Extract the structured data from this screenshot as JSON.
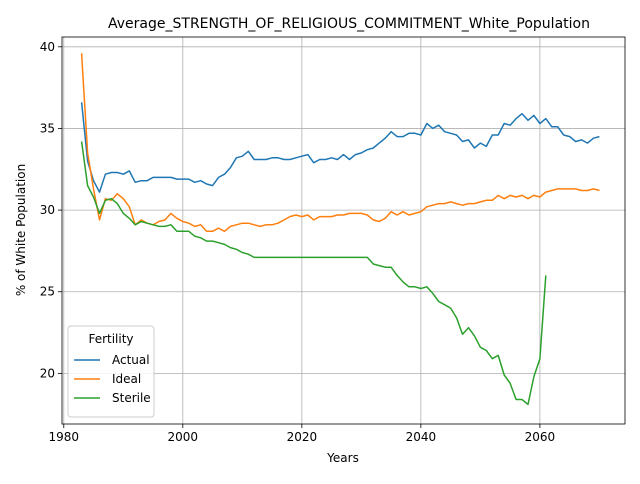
{
  "chart_data": {
    "type": "line",
    "title": "Average_STRENGTH_OF_RELIGIOUS_COMMITMENT_White_Population",
    "xlabel": "Years",
    "ylabel": "% of White Population",
    "xlim": [
      1979.7,
      2074.3
    ],
    "ylim": [
      16.9,
      40.6
    ],
    "xticks": [
      1980,
      2000,
      2020,
      2040,
      2060
    ],
    "yticks": [
      20,
      25,
      30,
      35,
      40
    ],
    "grid": true,
    "legend": {
      "title": "Fertility",
      "placement": "lower-left"
    },
    "series": [
      {
        "name": "Actual",
        "color": "#1f77b4",
        "x": [
          1983,
          1984,
          1985,
          1986,
          1987,
          1988,
          1989,
          1990,
          1991,
          1992,
          1993,
          1994,
          1995,
          1996,
          1997,
          1998,
          1999,
          2000,
          2001,
          2002,
          2003,
          2004,
          2005,
          2006,
          2007,
          2008,
          2009,
          2010,
          2011,
          2012,
          2013,
          2014,
          2015,
          2016,
          2017,
          2018,
          2019,
          2020,
          2021,
          2022,
          2023,
          2024,
          2025,
          2026,
          2027,
          2028,
          2029,
          2030,
          2031,
          2032,
          2033,
          2034,
          2035,
          2036,
          2037,
          2038,
          2039,
          2040,
          2041,
          2042,
          2043,
          2044,
          2045,
          2046,
          2047,
          2048,
          2049,
          2050,
          2051,
          2052,
          2053,
          2054,
          2055,
          2056,
          2057,
          2058,
          2059,
          2060,
          2061,
          2062,
          2063,
          2064,
          2065,
          2066,
          2067,
          2068,
          2069,
          2070
        ],
        "y": [
          36.6,
          33.0,
          31.8,
          31.1,
          32.2,
          32.3,
          32.3,
          32.2,
          32.4,
          31.7,
          31.8,
          31.8,
          32.0,
          32.0,
          32.0,
          32.0,
          31.9,
          31.9,
          31.9,
          31.7,
          31.8,
          31.6,
          31.5,
          32.0,
          32.2,
          32.6,
          33.2,
          33.3,
          33.6,
          33.1,
          33.1,
          33.1,
          33.2,
          33.2,
          33.1,
          33.1,
          33.2,
          33.3,
          33.4,
          32.9,
          33.1,
          33.1,
          33.2,
          33.1,
          33.4,
          33.1,
          33.4,
          33.5,
          33.7,
          33.8,
          34.1,
          34.4,
          34.8,
          34.5,
          34.5,
          34.7,
          34.7,
          34.6,
          35.3,
          35.0,
          35.2,
          34.8,
          34.7,
          34.6,
          34.2,
          34.3,
          33.8,
          34.1,
          33.9,
          34.6,
          34.6,
          35.3,
          35.2,
          35.6,
          35.9,
          35.5,
          35.8,
          35.3,
          35.6,
          35.1,
          35.1,
          34.6,
          34.5,
          34.2,
          34.3,
          34.1,
          34.4,
          34.5
        ]
      },
      {
        "name": "Ideal",
        "color": "#ff7f0e",
        "x": [
          1983,
          1984,
          1985,
          1986,
          1987,
          1988,
          1989,
          1990,
          1991,
          1992,
          1993,
          1994,
          1995,
          1996,
          1997,
          1998,
          1999,
          2000,
          2001,
          2002,
          2003,
          2004,
          2005,
          2006,
          2007,
          2008,
          2009,
          2010,
          2011,
          2012,
          2013,
          2014,
          2015,
          2016,
          2017,
          2018,
          2019,
          2020,
          2021,
          2022,
          2023,
          2024,
          2025,
          2026,
          2027,
          2028,
          2029,
          2030,
          2031,
          2032,
          2033,
          2034,
          2035,
          2036,
          2037,
          2038,
          2039,
          2040,
          2041,
          2042,
          2043,
          2044,
          2045,
          2046,
          2047,
          2048,
          2049,
          2050,
          2051,
          2052,
          2053,
          2054,
          2055,
          2056,
          2057,
          2058,
          2059,
          2060,
          2061,
          2062,
          2063,
          2064,
          2065,
          2066,
          2067,
          2068,
          2069,
          2070
        ],
        "y": [
          39.6,
          33.5,
          31.3,
          29.4,
          30.7,
          30.6,
          31.0,
          30.7,
          30.2,
          29.1,
          29.4,
          29.2,
          29.1,
          29.3,
          29.4,
          29.8,
          29.5,
          29.3,
          29.2,
          29.0,
          29.1,
          28.7,
          28.7,
          28.9,
          28.7,
          29.0,
          29.1,
          29.2,
          29.2,
          29.1,
          29.0,
          29.1,
          29.1,
          29.2,
          29.4,
          29.6,
          29.7,
          29.6,
          29.7,
          29.4,
          29.6,
          29.6,
          29.6,
          29.7,
          29.7,
          29.8,
          29.8,
          29.8,
          29.7,
          29.4,
          29.3,
          29.5,
          29.9,
          29.7,
          29.9,
          29.7,
          29.8,
          29.9,
          30.2,
          30.3,
          30.4,
          30.4,
          30.5,
          30.4,
          30.3,
          30.4,
          30.4,
          30.5,
          30.6,
          30.6,
          30.9,
          30.7,
          30.9,
          30.8,
          30.9,
          30.7,
          30.9,
          30.8,
          31.1,
          31.2,
          31.3,
          31.3,
          31.3,
          31.3,
          31.2,
          31.2,
          31.3,
          31.2
        ]
      },
      {
        "name": "Sterile",
        "color": "#2ca02c",
        "x": [
          1983,
          1984,
          1985,
          1986,
          1987,
          1988,
          1989,
          1990,
          1991,
          1992,
          1993,
          1994,
          1995,
          1996,
          1997,
          1998,
          1999,
          2000,
          2001,
          2002,
          2003,
          2004,
          2005,
          2006,
          2007,
          2008,
          2009,
          2010,
          2011,
          2012,
          2013,
          2014,
          2015,
          2016,
          2017,
          2018,
          2019,
          2020,
          2021,
          2022,
          2023,
          2024,
          2025,
          2026,
          2027,
          2028,
          2029,
          2030,
          2031,
          2032,
          2033,
          2034,
          2035,
          2036,
          2037,
          2038,
          2039,
          2040,
          2041,
          2042,
          2043,
          2044,
          2045,
          2046,
          2047,
          2048,
          2049,
          2050,
          2051,
          2052,
          2053,
          2054,
          2055,
          2056,
          2057,
          2058,
          2059,
          2060,
          2061
        ],
        "y": [
          34.2,
          31.5,
          30.8,
          29.8,
          30.6,
          30.7,
          30.4,
          29.8,
          29.5,
          29.1,
          29.3,
          29.2,
          29.1,
          29.0,
          29.0,
          29.1,
          28.7,
          28.7,
          28.7,
          28.4,
          28.3,
          28.1,
          28.1,
          28.0,
          27.9,
          27.7,
          27.6,
          27.4,
          27.3,
          27.1,
          27.1,
          27.1,
          27.1,
          27.1,
          27.1,
          27.1,
          27.1,
          27.1,
          27.1,
          27.1,
          27.1,
          27.1,
          27.1,
          27.1,
          27.1,
          27.1,
          27.1,
          27.1,
          27.1,
          26.7,
          26.6,
          26.5,
          26.5,
          26.0,
          25.6,
          25.3,
          25.3,
          25.2,
          25.3,
          24.9,
          24.4,
          24.2,
          24.0,
          23.4,
          22.4,
          22.8,
          22.3,
          21.6,
          21.4,
          20.9,
          21.1,
          19.9,
          19.4,
          18.4,
          18.4,
          18.1,
          19.8,
          20.9,
          26.0
        ]
      }
    ]
  }
}
